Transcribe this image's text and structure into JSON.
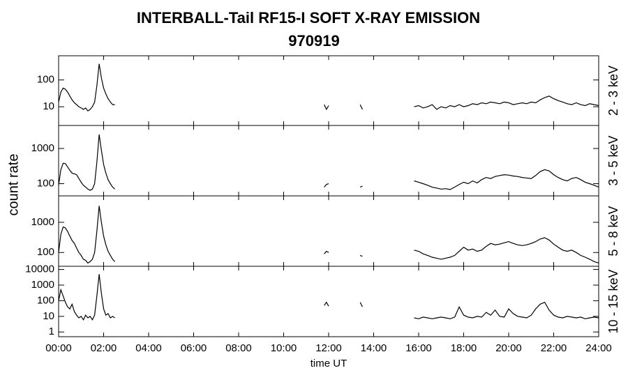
{
  "chart_data": {
    "type": "line",
    "title": "INTERBALL-Tail RF15-I SOFT X-RAY EMISSION",
    "subtitle": "970919",
    "ylabel": "count rate",
    "xlabel": "time UT",
    "color": "#000000",
    "log_y": true,
    "xlim": [
      0,
      24
    ],
    "xticks": [
      {
        "value": 0,
        "label": "00:00"
      },
      {
        "value": 2,
        "label": "02:00"
      },
      {
        "value": 4,
        "label": "04:00"
      },
      {
        "value": 6,
        "label": "06:00"
      },
      {
        "value": 8,
        "label": "08:00"
      },
      {
        "value": 10,
        "label": "10:00"
      },
      {
        "value": 12,
        "label": "12:00"
      },
      {
        "value": 14,
        "label": "14:00"
      },
      {
        "value": 16,
        "label": "16:00"
      },
      {
        "value": 18,
        "label": "18:00"
      },
      {
        "value": 20,
        "label": "20:00"
      },
      {
        "value": 22,
        "label": "22:00"
      },
      {
        "value": 24,
        "label": "24:00"
      }
    ],
    "x": [
      0,
      0.1,
      0.2,
      0.3,
      0.4,
      0.5,
      0.6,
      0.7,
      0.8,
      0.9,
      1.0,
      1.1,
      1.2,
      1.3,
      1.4,
      1.5,
      1.6,
      1.7,
      1.8,
      1.9,
      2.0,
      2.1,
      2.2,
      2.3,
      2.4,
      2.5,
      3.0,
      11.8,
      11.9,
      12.0,
      13.0,
      13.4,
      13.5,
      14.5,
      15.8,
      16.0,
      16.2,
      16.4,
      16.6,
      16.8,
      17.0,
      17.2,
      17.4,
      17.6,
      17.8,
      18.0,
      18.2,
      18.4,
      18.6,
      18.8,
      19.0,
      19.2,
      19.4,
      19.6,
      19.8,
      20.0,
      20.2,
      20.4,
      20.6,
      20.8,
      21.0,
      21.2,
      21.4,
      21.6,
      21.8,
      22.0,
      22.2,
      22.4,
      22.6,
      22.8,
      23.0,
      23.2,
      23.4,
      23.6,
      23.8,
      24.0
    ],
    "series": [
      {
        "name": "2 - 3 keV",
        "ylim": [
          2,
          800
        ],
        "yticks": [
          10,
          100
        ],
        "values": [
          15,
          35,
          50,
          45,
          35,
          25,
          18,
          14,
          12,
          10,
          9,
          8,
          9,
          7,
          8,
          10,
          15,
          60,
          400,
          120,
          50,
          30,
          20,
          15,
          12,
          12,
          null,
          12,
          8,
          11,
          null,
          12,
          8,
          null,
          10,
          11,
          9,
          10,
          12,
          8,
          10,
          9,
          11,
          10,
          12,
          10,
          11,
          13,
          12,
          14,
          13,
          15,
          14,
          13,
          15,
          14,
          12,
          13,
          14,
          13,
          15,
          14,
          18,
          22,
          25,
          20,
          17,
          15,
          13,
          12,
          14,
          12,
          11,
          13,
          12,
          11
        ]
      },
      {
        "name": "3 - 5 keV",
        "ylim": [
          45,
          4500
        ],
        "yticks": [
          100,
          1000
        ],
        "values": [
          90,
          250,
          380,
          370,
          300,
          240,
          200,
          190,
          180,
          140,
          110,
          90,
          80,
          70,
          65,
          70,
          100,
          400,
          2500,
          900,
          350,
          200,
          130,
          100,
          80,
          70,
          null,
          80,
          95,
          100,
          null,
          80,
          85,
          null,
          120,
          110,
          100,
          90,
          80,
          75,
          70,
          72,
          68,
          80,
          95,
          110,
          100,
          120,
          105,
          130,
          150,
          140,
          160,
          170,
          180,
          175,
          165,
          160,
          150,
          145,
          140,
          170,
          220,
          250,
          230,
          180,
          150,
          130,
          120,
          140,
          150,
          130,
          110,
          100,
          90,
          80
        ]
      },
      {
        "name": "5 - 8 keV",
        "ylim": [
          35,
          7500
        ],
        "yticks": [
          100,
          1000
        ],
        "values": [
          100,
          400,
          700,
          650,
          500,
          350,
          250,
          200,
          140,
          100,
          80,
          60,
          55,
          45,
          50,
          60,
          100,
          500,
          3500,
          1000,
          350,
          180,
          110,
          80,
          60,
          50,
          null,
          90,
          110,
          100,
          null,
          80,
          75,
          null,
          120,
          110,
          90,
          80,
          70,
          65,
          60,
          65,
          70,
          80,
          110,
          150,
          120,
          130,
          110,
          120,
          160,
          200,
          180,
          190,
          210,
          230,
          200,
          180,
          170,
          180,
          200,
          230,
          280,
          310,
          260,
          190,
          150,
          120,
          110,
          120,
          100,
          80,
          70,
          60,
          50,
          45
        ]
      },
      {
        "name": "10 - 15 keV",
        "ylim": [
          0.5,
          16000
        ],
        "yticks": [
          1,
          10,
          100,
          1000,
          10000
        ],
        "values": [
          100,
          500,
          200,
          80,
          40,
          30,
          60,
          20,
          12,
          8,
          10,
          6,
          12,
          8,
          10,
          6,
          12,
          200,
          5000,
          300,
          30,
          12,
          15,
          8,
          10,
          8,
          null,
          50,
          80,
          45,
          null,
          80,
          40,
          null,
          8,
          7,
          9,
          8,
          7,
          8,
          9,
          8,
          7,
          9,
          40,
          12,
          9,
          8,
          10,
          9,
          18,
          12,
          25,
          10,
          9,
          30,
          15,
          10,
          9,
          8,
          12,
          30,
          60,
          80,
          25,
          12,
          9,
          8,
          10,
          9,
          8,
          9,
          7,
          8,
          9,
          8
        ]
      }
    ]
  }
}
